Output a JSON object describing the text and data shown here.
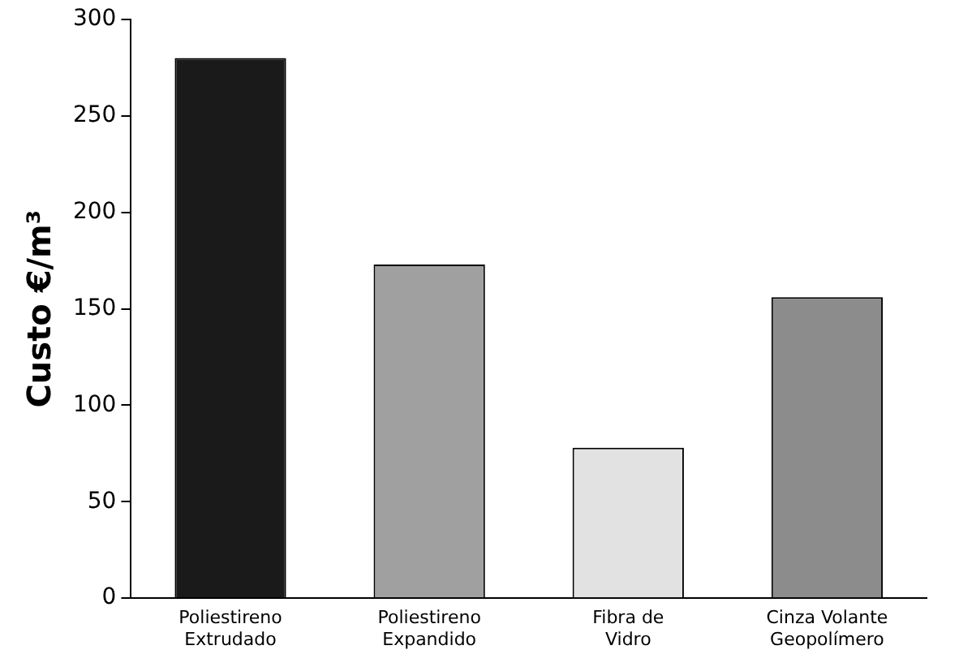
{
  "chart_data": {
    "type": "bar",
    "ylabel": "Custo €/m³",
    "categories": [
      "Poliestireno Extrudado",
      "Poliestireno Expandido",
      "Fibra de Vidro",
      "Cinza Volante Geopolímero"
    ],
    "values": [
      280,
      173,
      78,
      156
    ],
    "colors": [
      "#1a1a1a",
      "#a0a0a0",
      "#e2e2e2",
      "#8c8c8c"
    ],
    "ylim": [
      0,
      300
    ],
    "yticks": [
      0,
      50,
      100,
      150,
      200,
      250,
      300
    ],
    "grid": false,
    "legend": false
  }
}
